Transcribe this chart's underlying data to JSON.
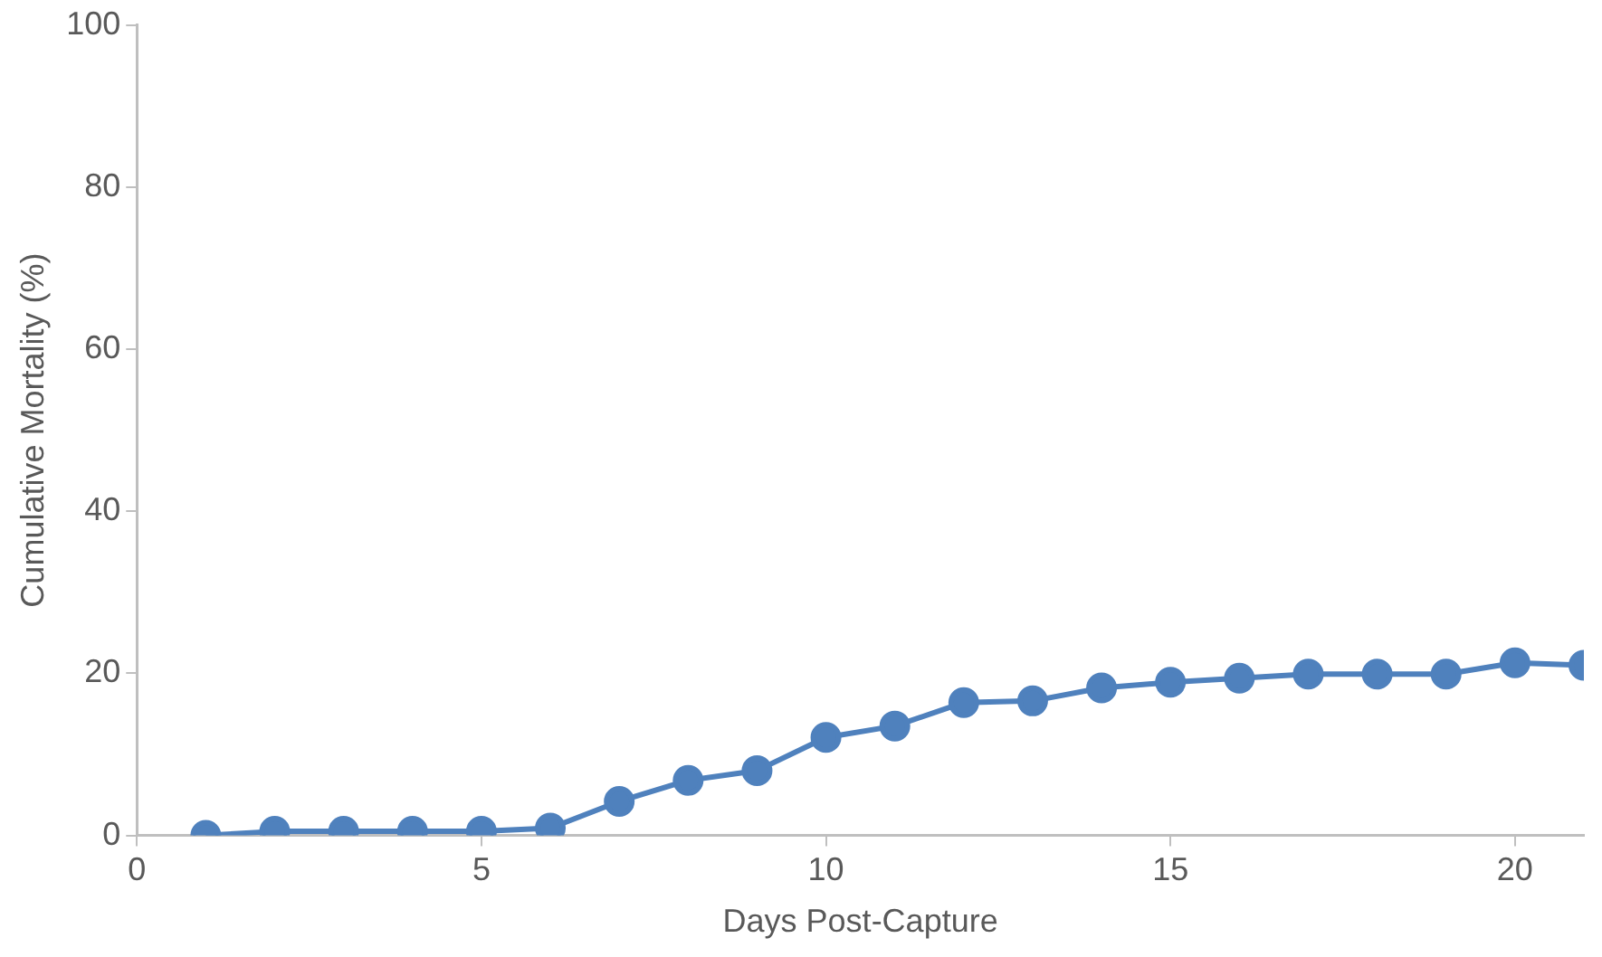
{
  "chart_data": {
    "type": "line",
    "xlabel": "Days Post-Capture",
    "ylabel": "Cumulative Mortality (%)",
    "x": [
      1,
      2,
      3,
      4,
      5,
      6,
      7,
      8,
      9,
      10,
      11,
      12,
      13,
      14,
      15,
      16,
      17,
      18,
      19,
      20,
      21
    ],
    "series": [
      {
        "color": "#4f81bd",
        "values": [
          0,
          0.5,
          0.5,
          0.5,
          0.5,
          0.9,
          4.2,
          6.8,
          8.0,
          12.1,
          13.5,
          16.4,
          16.6,
          18.2,
          18.9,
          19.4,
          19.9,
          19.9,
          19.9,
          21.3,
          21.0
        ]
      }
    ],
    "xlim": [
      0,
      21
    ],
    "xticks": [
      0,
      5,
      10,
      15,
      20
    ],
    "ylim": [
      0,
      100
    ],
    "yticks": [
      0,
      20,
      40,
      60,
      80,
      100
    ],
    "grid": false,
    "legend": false,
    "marker": "circle",
    "line_style": "solid"
  }
}
